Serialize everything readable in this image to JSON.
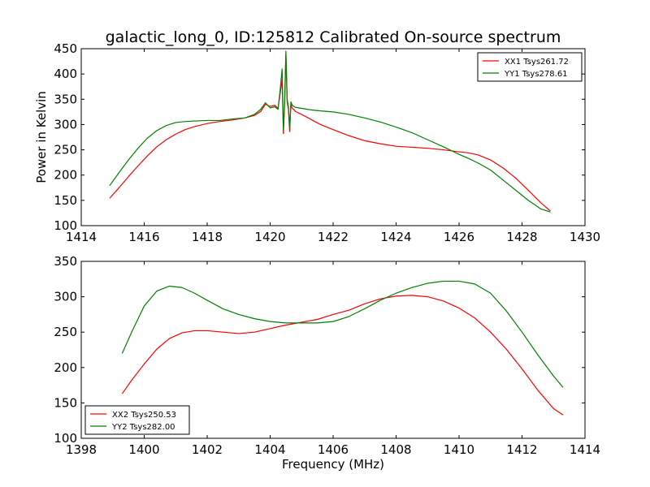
{
  "figure": {
    "background": "#ffffff"
  },
  "chart_data": [
    {
      "type": "line",
      "title": "galactic_long_0, ID:125812 Calibrated On-source spectrum",
      "xlabel": "",
      "ylabel": "Power in Kelvin",
      "xlim": [
        1414,
        1430
      ],
      "ylim": [
        100,
        450
      ],
      "xticks": [
        1414,
        1416,
        1418,
        1420,
        1422,
        1424,
        1426,
        1428,
        1430
      ],
      "yticks": [
        100,
        150,
        200,
        250,
        300,
        350,
        400,
        450
      ],
      "grid": false,
      "legend": {
        "placement": "upper-right",
        "entries": [
          "XX1 Tsys261.72",
          "YY1 Tsys278.61"
        ]
      },
      "series": [
        {
          "name": "XX1 Tsys261.72",
          "color": "#ff0000",
          "x": [
            1414.9,
            1415.2,
            1415.5,
            1415.8,
            1416.1,
            1416.4,
            1416.7,
            1417.0,
            1417.3,
            1417.6,
            1418.0,
            1418.4,
            1418.8,
            1419.2,
            1419.5,
            1419.7,
            1419.85,
            1420.0,
            1420.15,
            1420.25,
            1420.32,
            1420.38,
            1420.42,
            1420.46,
            1420.5,
            1420.54,
            1420.58,
            1420.62,
            1420.66,
            1420.7,
            1420.75,
            1420.8,
            1421.0,
            1421.3,
            1421.6,
            1422.0,
            1422.5,
            1423.0,
            1423.5,
            1424.0,
            1424.5,
            1425.0,
            1425.5,
            1426.0,
            1426.3,
            1426.6,
            1427.0,
            1427.4,
            1427.8,
            1428.2,
            1428.6,
            1428.9
          ],
          "y": [
            154,
            175,
            197,
            218,
            238,
            256,
            270,
            281,
            290,
            296,
            302,
            306,
            309,
            313,
            318,
            326,
            340,
            336,
            338,
            332,
            362,
            388,
            282,
            340,
            440,
            345,
            330,
            286,
            340,
            332,
            330,
            326,
            320,
            310,
            300,
            290,
            278,
            268,
            262,
            257,
            255,
            253,
            250,
            246,
            244,
            240,
            230,
            214,
            194,
            170,
            145,
            129
          ]
        },
        {
          "name": "YY1 Tsys278.61",
          "color": "#008000",
          "x": [
            1414.9,
            1415.2,
            1415.5,
            1415.8,
            1416.1,
            1416.4,
            1416.7,
            1417.0,
            1417.3,
            1417.6,
            1418.0,
            1418.4,
            1418.8,
            1419.2,
            1419.5,
            1419.7,
            1419.85,
            1420.0,
            1420.15,
            1420.25,
            1420.32,
            1420.38,
            1420.42,
            1420.46,
            1420.5,
            1420.54,
            1420.58,
            1420.62,
            1420.66,
            1420.7,
            1420.75,
            1420.8,
            1421.0,
            1421.3,
            1421.6,
            1422.0,
            1422.5,
            1423.0,
            1423.5,
            1424.0,
            1424.5,
            1425.0,
            1425.5,
            1426.0,
            1426.3,
            1426.6,
            1427.0,
            1427.4,
            1427.8,
            1428.2,
            1428.6,
            1428.9
          ],
          "y": [
            179,
            205,
            230,
            253,
            273,
            288,
            298,
            304,
            306,
            307,
            308,
            308,
            311,
            313,
            320,
            330,
            343,
            333,
            335,
            330,
            370,
            410,
            290,
            345,
            445,
            350,
            335,
            295,
            345,
            338,
            336,
            334,
            332,
            329,
            327,
            325,
            320,
            313,
            305,
            295,
            284,
            270,
            256,
            241,
            233,
            224,
            210,
            190,
            170,
            150,
            133,
            127
          ]
        }
      ]
    },
    {
      "type": "line",
      "title": "",
      "xlabel": "Frequency (MHz)",
      "ylabel": "",
      "xlim": [
        1398,
        1414
      ],
      "ylim": [
        100,
        350
      ],
      "xticks": [
        1398,
        1400,
        1402,
        1404,
        1406,
        1408,
        1410,
        1412,
        1414
      ],
      "yticks": [
        100,
        150,
        200,
        250,
        300,
        350
      ],
      "grid": false,
      "legend": {
        "placement": "lower-left",
        "entries": [
          "XX2 Tsys250.53",
          "YY2 Tsys282.00"
        ]
      },
      "series": [
        {
          "name": "XX2 Tsys250.53",
          "color": "#ff0000",
          "x": [
            1399.3,
            1399.6,
            1400.0,
            1400.4,
            1400.8,
            1401.2,
            1401.6,
            1402.0,
            1402.5,
            1403.0,
            1403.5,
            1404.0,
            1404.5,
            1405.0,
            1405.5,
            1406.0,
            1406.5,
            1407.0,
            1407.5,
            1408.0,
            1408.5,
            1409.0,
            1409.5,
            1410.0,
            1410.5,
            1411.0,
            1411.5,
            1412.0,
            1412.5,
            1413.0,
            1413.3
          ],
          "y": [
            163,
            182,
            205,
            226,
            241,
            249,
            252,
            252,
            250,
            248,
            250,
            255,
            260,
            264,
            268,
            275,
            281,
            290,
            297,
            301,
            302,
            300,
            294,
            284,
            270,
            250,
            226,
            198,
            168,
            142,
            133
          ]
        },
        {
          "name": "YY2 Tsys282.00",
          "color": "#008000",
          "x": [
            1399.3,
            1399.6,
            1400.0,
            1400.4,
            1400.8,
            1401.2,
            1401.6,
            1402.0,
            1402.5,
            1403.0,
            1403.5,
            1404.0,
            1404.5,
            1405.0,
            1405.5,
            1406.0,
            1406.5,
            1407.0,
            1407.5,
            1408.0,
            1408.5,
            1409.0,
            1409.5,
            1410.0,
            1410.5,
            1411.0,
            1411.5,
            1412.0,
            1412.5,
            1413.0,
            1413.3
          ],
          "y": [
            220,
            250,
            287,
            308,
            315,
            313,
            305,
            295,
            283,
            275,
            269,
            265,
            263,
            263,
            263,
            265,
            272,
            283,
            295,
            305,
            313,
            319,
            322,
            322,
            318,
            305,
            280,
            250,
            218,
            188,
            172
          ]
        }
      ]
    }
  ]
}
